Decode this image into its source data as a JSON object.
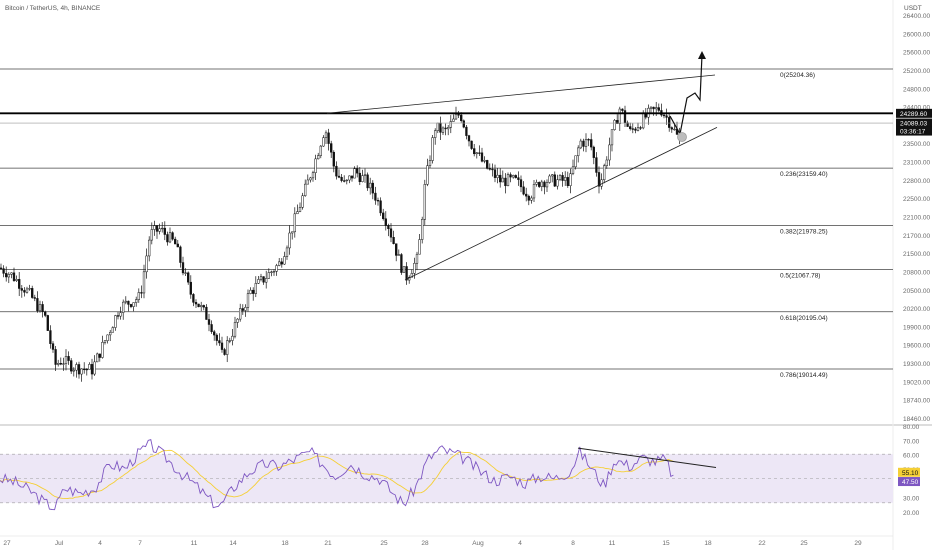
{
  "header": {
    "symbol": "Bitcoin / TetherUS, 4h, BINANCE",
    "currency": "USDT"
  },
  "price_axis": {
    "ticks": [
      "26400.00",
      "26000.00",
      "25600.00",
      "25200.00",
      "24800.00",
      "24400.00",
      "23800.00",
      "23500.00",
      "23100.00",
      "22800.00",
      "22500.00",
      "22100.00",
      "21700.00",
      "21500.00",
      "20800.00",
      "20500.00",
      "20200.00",
      "19900.00",
      "19600.00",
      "19300.00",
      "19020.00",
      "18740.00",
      "18460.00"
    ]
  },
  "time_axis": {
    "labels": [
      "27",
      "Jul",
      "4",
      "7",
      "11",
      "14",
      "18",
      "21",
      "25",
      "28",
      "Aug",
      "4",
      "8",
      "11",
      "15",
      "18",
      "22",
      "25",
      "29"
    ]
  },
  "fib_levels": [
    {
      "label": "0(25204.36)",
      "price": 25204.36
    },
    {
      "label": "0.236(23159.40)",
      "price": 23159.4
    },
    {
      "label": "0.382(21978.25)",
      "price": 21978.25
    },
    {
      "label": "0.5(21067.78)",
      "price": 21067.78
    },
    {
      "label": "0.618(20195.04)",
      "price": 20195.04
    },
    {
      "label": "0.786(19014.49)",
      "price": 19014.49
    }
  ],
  "price_tags": [
    {
      "text": "24289.60",
      "color": "#111111"
    },
    {
      "text": "24089.03",
      "color": "#111111"
    },
    {
      "text": "03:36:17",
      "color": "#111111"
    }
  ],
  "rsi_axis": {
    "ticks": [
      "80.00",
      "70.00",
      "60.00",
      "50.00",
      "40.00",
      "30.00",
      "20.00"
    ]
  },
  "rsi_tags": [
    {
      "text": "55.10",
      "color": "#f5cf35",
      "text_color": "#111111"
    },
    {
      "text": "47.50",
      "color": "#7e57c2",
      "text_color": "#ffffff"
    }
  ],
  "colors": {
    "candle": "#111111",
    "fib_line": "#444444",
    "resistance": "#000000",
    "rsi_line": "#7e57c2",
    "rsi_ma": "#f5cf35",
    "rsi_band": "#ede7f6",
    "trend": "#222222"
  },
  "chart_data": {
    "type": "candlestick",
    "symbol": "Bitcoin / TetherUS",
    "timeframe": "4h",
    "exchange": "BINANCE",
    "price_range": [
      18300,
      26600
    ],
    "resistance_level": 24289.6,
    "last_price": 24089.03,
    "fib_retracement": [
      {
        "ratio": 0,
        "price": 25204.36
      },
      {
        "ratio": 0.236,
        "price": 23159.4
      },
      {
        "ratio": 0.382,
        "price": 21978.25
      },
      {
        "ratio": 0.5,
        "price": 21067.78
      },
      {
        "ratio": 0.618,
        "price": 20195.04
      },
      {
        "ratio": 0.786,
        "price": 19014.49
      }
    ],
    "close_path": [
      [
        0,
        21100
      ],
      [
        12,
        20950
      ],
      [
        28,
        20600
      ],
      [
        45,
        20100
      ],
      [
        55,
        19100
      ],
      [
        62,
        19200
      ],
      [
        75,
        19050
      ],
      [
        92,
        19000
      ],
      [
        105,
        19600
      ],
      [
        120,
        20300
      ],
      [
        140,
        20500
      ],
      [
        150,
        21800
      ],
      [
        160,
        21900
      ],
      [
        175,
        21600
      ],
      [
        190,
        20600
      ],
      [
        210,
        20000
      ],
      [
        222,
        19300
      ],
      [
        235,
        19900
      ],
      [
        250,
        20600
      ],
      [
        265,
        20900
      ],
      [
        280,
        21200
      ],
      [
        295,
        22100
      ],
      [
        305,
        22700
      ],
      [
        315,
        23300
      ],
      [
        325,
        24000
      ],
      [
        335,
        23100
      ],
      [
        345,
        22800
      ],
      [
        355,
        23100
      ],
      [
        365,
        22900
      ],
      [
        375,
        22600
      ],
      [
        388,
        22000
      ],
      [
        400,
        21200
      ],
      [
        406,
        20900
      ],
      [
        418,
        21300
      ],
      [
        425,
        22800
      ],
      [
        435,
        24000
      ],
      [
        445,
        23900
      ],
      [
        460,
        24300
      ],
      [
        470,
        23700
      ],
      [
        485,
        23200
      ],
      [
        500,
        22900
      ],
      [
        515,
        22900
      ],
      [
        530,
        22600
      ],
      [
        540,
        22900
      ],
      [
        555,
        22900
      ],
      [
        570,
        22900
      ],
      [
        580,
        23700
      ],
      [
        590,
        23700
      ],
      [
        600,
        22800
      ],
      [
        610,
        23700
      ],
      [
        620,
        24400
      ],
      [
        630,
        23900
      ],
      [
        640,
        24100
      ],
      [
        650,
        24300
      ],
      [
        660,
        24400
      ],
      [
        670,
        24100
      ],
      [
        680,
        23700
      ]
    ],
    "rsi": {
      "period": 14,
      "upper_band": 70,
      "lower_band": 30,
      "range": [
        20,
        80
      ],
      "last_value": 47.5,
      "ma_last": 55.1,
      "path": [
        [
          0,
          50
        ],
        [
          15,
          47
        ],
        [
          30,
          40
        ],
        [
          45,
          30
        ],
        [
          55,
          26
        ],
        [
          65,
          42
        ],
        [
          80,
          38
        ],
        [
          95,
          42
        ],
        [
          110,
          62
        ],
        [
          125,
          58
        ],
        [
          140,
          72
        ],
        [
          150,
          78
        ],
        [
          165,
          68
        ],
        [
          180,
          55
        ],
        [
          195,
          45
        ],
        [
          210,
          32
        ],
        [
          220,
          27
        ],
        [
          235,
          44
        ],
        [
          250,
          56
        ],
        [
          265,
          62
        ],
        [
          280,
          60
        ],
        [
          295,
          66
        ],
        [
          310,
          72
        ],
        [
          320,
          64
        ],
        [
          335,
          52
        ],
        [
          350,
          62
        ],
        [
          365,
          54
        ],
        [
          380,
          50
        ],
        [
          395,
          36
        ],
        [
          404,
          29
        ],
        [
          415,
          42
        ],
        [
          428,
          66
        ],
        [
          440,
          74
        ],
        [
          455,
          70
        ],
        [
          465,
          66
        ],
        [
          480,
          56
        ],
        [
          495,
          48
        ],
        [
          510,
          52
        ],
        [
          525,
          46
        ],
        [
          540,
          52
        ],
        [
          555,
          50
        ],
        [
          570,
          56
        ],
        [
          580,
          72
        ],
        [
          592,
          58
        ],
        [
          604,
          44
        ],
        [
          615,
          66
        ],
        [
          630,
          60
        ],
        [
          642,
          67
        ],
        [
          655,
          64
        ],
        [
          665,
          66
        ],
        [
          675,
          48
        ]
      ]
    }
  }
}
